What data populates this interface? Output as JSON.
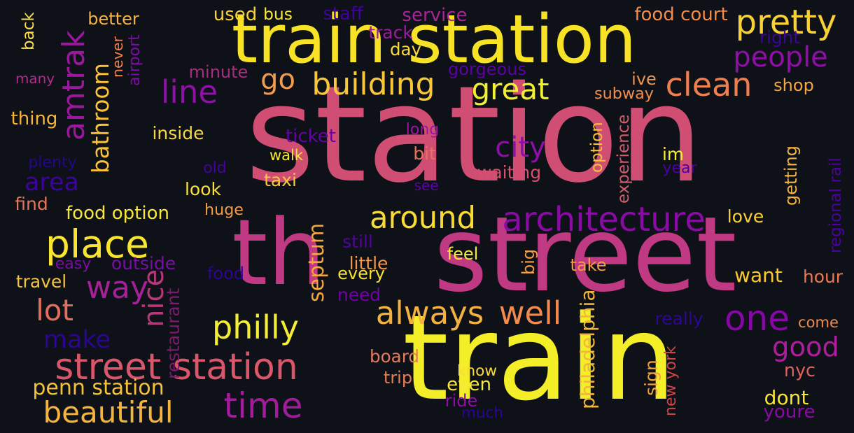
{
  "background": "#0e1118",
  "palette": {
    "yellow": "#f3ee27",
    "gold": "#fbd338",
    "orange": "#f6a442",
    "salmon": "#e6795a",
    "pink": "#d04d73",
    "magenta": "#b52e8e",
    "purple": "#8f0ea6",
    "violet": "#6a00a8",
    "indigo": "#3d049b",
    "navy": "#24088a"
  },
  "words": [
    {
      "text": "station",
      "color": "#d04d73"
    },
    {
      "text": "train",
      "color": "#f3ee27"
    },
    {
      "text": "th",
      "color": "#c03a83"
    },
    {
      "text": "street",
      "color": "#c03a83"
    },
    {
      "text": "train station",
      "color": "#f7e225"
    },
    {
      "text": "pretty",
      "color": "#f8d235"
    },
    {
      "text": "people",
      "color": "#8f0ea6"
    },
    {
      "text": "amtrak",
      "color": "#9c179e"
    },
    {
      "text": "bathroom",
      "color": "#fbc238"
    },
    {
      "text": "go",
      "color": "#f39b4d"
    },
    {
      "text": "building",
      "color": "#f8c83a"
    },
    {
      "text": "great",
      "color": "#f1f131"
    },
    {
      "text": "clean",
      "color": "#ef7f4f"
    },
    {
      "text": "line",
      "color": "#8c11a5"
    },
    {
      "text": "city",
      "color": "#8e0fa5"
    },
    {
      "text": "area",
      "color": "#3b049a"
    },
    {
      "text": "place",
      "color": "#f9e52f"
    },
    {
      "text": "around",
      "color": "#f8dc34"
    },
    {
      "text": "architecture",
      "color": "#8b0aa5"
    },
    {
      "text": "septum",
      "color": "#f5a63d"
    },
    {
      "text": "way",
      "color": "#a62098"
    },
    {
      "text": "lot",
      "color": "#e36e5c"
    },
    {
      "text": "nice",
      "color": "#b73779"
    },
    {
      "text": "philly",
      "color": "#f5ec36"
    },
    {
      "text": "always",
      "color": "#f3b13f"
    },
    {
      "text": "well",
      "color": "#f38a4d"
    },
    {
      "text": "one",
      "color": "#8706a6"
    },
    {
      "text": "good",
      "color": "#ad1f9a"
    },
    {
      "text": "make",
      "color": "#2c0594"
    },
    {
      "text": "street station",
      "color": "#d8576b"
    },
    {
      "text": "time",
      "color": "#a11b9b"
    },
    {
      "text": "beautiful",
      "color": "#f6b43c"
    },
    {
      "text": "penn station",
      "color": "#f6c138"
    },
    {
      "text": "restaurant",
      "color": "#7c1b6d"
    },
    {
      "text": "philadelphia",
      "color": "#f2b53c"
    },
    {
      "text": "new york",
      "color": "#cf4446"
    },
    {
      "text": "sign",
      "color": "#f3a13f"
    },
    {
      "text": "nyc",
      "color": "#df6263"
    },
    {
      "text": "dont",
      "color": "#f6e533"
    },
    {
      "text": "youre",
      "color": "#8b0aa5"
    },
    {
      "text": "come",
      "color": "#f28a4a"
    },
    {
      "text": "hour",
      "color": "#ed7953"
    },
    {
      "text": "want",
      "color": "#f9c936"
    },
    {
      "text": "really",
      "color": "#2f0596"
    },
    {
      "text": "take",
      "color": "#f89a40"
    },
    {
      "text": "big",
      "color": "#f69e43"
    },
    {
      "text": "feel",
      "color": "#f9ea35"
    },
    {
      "text": "love",
      "color": "#fcd231"
    },
    {
      "text": "getting",
      "color": "#f6b43d"
    },
    {
      "text": "regional rail",
      "color": "#4c02a1"
    },
    {
      "text": "experience",
      "color": "#d45d6a"
    },
    {
      "text": "option",
      "color": "#f9c23c"
    },
    {
      "text": "im",
      "color": "#f7ed32"
    },
    {
      "text": "year",
      "color": "#4c02a1"
    },
    {
      "text": "waiting",
      "color": "#d84f6d"
    },
    {
      "text": "see",
      "color": "#5c01a6"
    },
    {
      "text": "long",
      "color": "#9c179e"
    },
    {
      "text": "bit",
      "color": "#e9735a"
    },
    {
      "text": "ticket",
      "color": "#6600a7"
    },
    {
      "text": "walk",
      "color": "#f6e934"
    },
    {
      "text": "taxi",
      "color": "#f8c93d"
    },
    {
      "text": "inside",
      "color": "#f6d745"
    },
    {
      "text": "look",
      "color": "#f9e03c"
    },
    {
      "text": "old",
      "color": "#44039e"
    },
    {
      "text": "huge",
      "color": "#f39c48"
    },
    {
      "text": "food option",
      "color": "#f8e736"
    },
    {
      "text": "still",
      "color": "#5302a3"
    },
    {
      "text": "little",
      "color": "#f39746"
    },
    {
      "text": "every",
      "color": "#f7e034"
    },
    {
      "text": "need",
      "color": "#7201a8"
    },
    {
      "text": "food",
      "color": "#2d0593"
    },
    {
      "text": "easy",
      "color": "#7a0da4"
    },
    {
      "text": "outside",
      "color": "#7a0ea4"
    },
    {
      "text": "travel",
      "color": "#f5c33c"
    },
    {
      "text": "find",
      "color": "#e3775a"
    },
    {
      "text": "plenty",
      "color": "#240789"
    },
    {
      "text": "thing",
      "color": "#f7b43b"
    },
    {
      "text": "many",
      "color": "#b32c8e"
    },
    {
      "text": "back",
      "color": "#fbe04a"
    },
    {
      "text": "better",
      "color": "#f7b341"
    },
    {
      "text": "airport",
      "color": "#7c0ea4"
    },
    {
      "text": "never",
      "color": "#f08050"
    },
    {
      "text": "minute",
      "color": "#a62e7f"
    },
    {
      "text": "used",
      "color": "#f7d339"
    },
    {
      "text": "bus",
      "color": "#f9e637"
    },
    {
      "text": "staff",
      "color": "#3f039c"
    },
    {
      "text": "service",
      "color": "#a62698"
    },
    {
      "text": "track",
      "color": "#9e1b9b"
    },
    {
      "text": "day",
      "color": "#fad93b"
    },
    {
      "text": "gorgeous",
      "color": "#5d01a6"
    },
    {
      "text": "food court",
      "color": "#f68b45"
    },
    {
      "text": "right",
      "color": "#3c049b"
    },
    {
      "text": "ive",
      "color": "#e79655"
    },
    {
      "text": "subway",
      "color": "#f28e4b"
    },
    {
      "text": "shop",
      "color": "#f6a741"
    },
    {
      "text": "board",
      "color": "#e57a5e"
    },
    {
      "text": "trip",
      "color": "#ea7d53"
    },
    {
      "text": "know",
      "color": "#fadb3c"
    },
    {
      "text": "even",
      "color": "#f9e942"
    },
    {
      "text": "ride",
      "color": "#8a11a3"
    },
    {
      "text": "much",
      "color": "#2a0691"
    }
  ]
}
